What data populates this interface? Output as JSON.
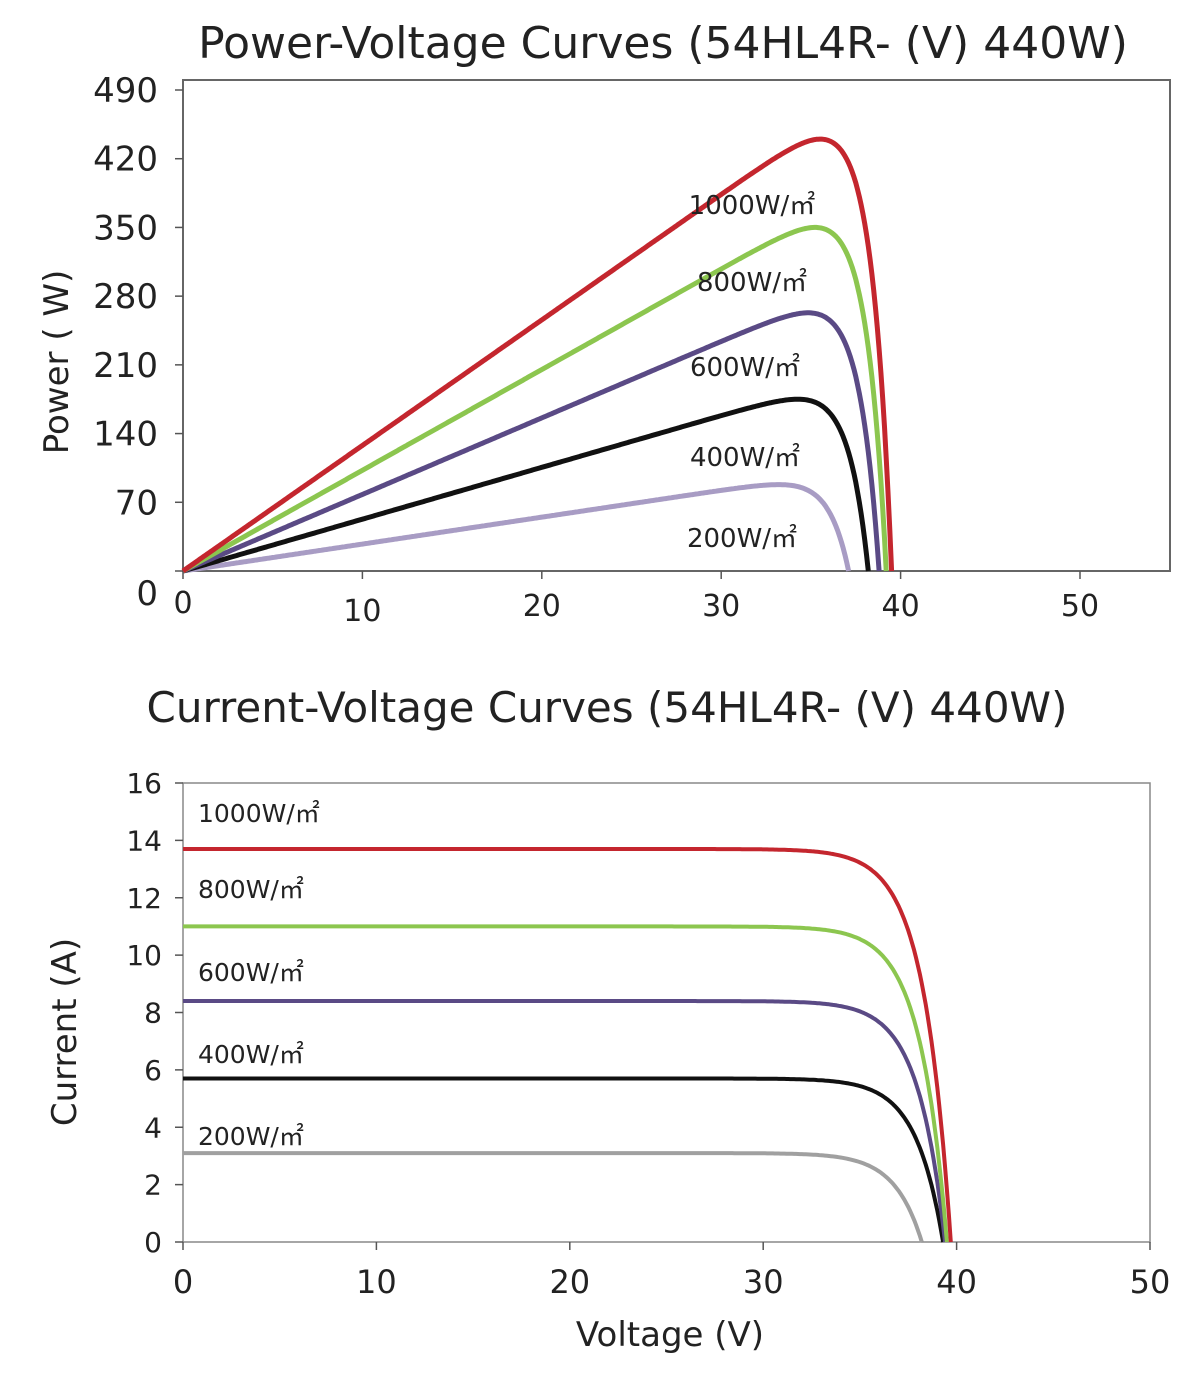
{
  "chart_data": [
    {
      "type": "line",
      "title": "Power-Voltage Curves (54HL4R- (V)  440W)",
      "xlabel": "",
      "ylabel": "Power ( W)",
      "xlim": [
        0,
        55
      ],
      "ylim": [
        0,
        490
      ],
      "x_ticks": [
        "0",
        "10",
        "20",
        "30",
        "40",
        "50"
      ],
      "y_ticks": [
        "0",
        "70",
        "140",
        "210",
        "280",
        "350",
        "420",
        "490"
      ],
      "grid": false,
      "series": [
        {
          "name": "1000W/㎡",
          "color": "#c4262e",
          "vmp": 33,
          "pmax": 440,
          "voc": 39.5
        },
        {
          "name": "800W/㎡",
          "color": "#8cc64f",
          "vmp": 33,
          "pmax": 350,
          "voc": 39.2
        },
        {
          "name": "600W/㎡",
          "color": "#5a4a85",
          "vmp": 33,
          "pmax": 263,
          "voc": 38.8
        },
        {
          "name": "400W/㎡",
          "color": "#111111",
          "vmp": 33,
          "pmax": 175,
          "voc": 38.2
        },
        {
          "name": "200W/㎡",
          "color": "#a89cc4",
          "vmp": 33,
          "pmax": 88,
          "voc": 37.1
        }
      ]
    },
    {
      "type": "line",
      "title": "Current-Voltage Curves (54HL4R- (V)  440W)",
      "xlabel": "Voltage (V)",
      "ylabel": "Current (A)",
      "xlim": [
        0,
        50
      ],
      "ylim": [
        0,
        16
      ],
      "x_ticks": [
        "0",
        "10",
        "20",
        "30",
        "40",
        "50"
      ],
      "y_ticks": [
        "0",
        "2",
        "4",
        "6",
        "8",
        "10",
        "12",
        "14",
        "16"
      ],
      "grid": false,
      "series": [
        {
          "name": "1000W/㎡",
          "color": "#c4262e",
          "isc": 13.7,
          "voc": 39.7
        },
        {
          "name": "800W/㎡",
          "color": "#8cc64f",
          "isc": 11.0,
          "voc": 39.5
        },
        {
          "name": "600W/㎡",
          "color": "#5a4a85",
          "isc": 8.4,
          "voc": 39.4
        },
        {
          "name": "400W/㎡",
          "color": "#111111",
          "isc": 5.7,
          "voc": 39.3
        },
        {
          "name": "200W/㎡",
          "color": "#a0a0a0",
          "isc": 3.1,
          "voc": 38.2
        }
      ]
    }
  ]
}
